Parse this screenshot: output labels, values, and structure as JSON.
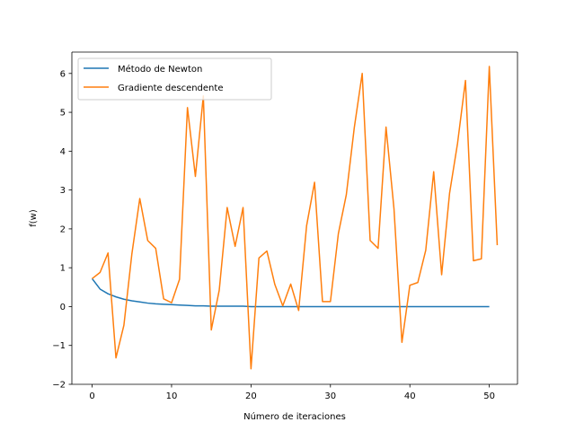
{
  "chart_data": {
    "type": "line",
    "xlabel": "Número de iteraciones",
    "ylabel": "f(w)",
    "xlim": [
      -2.55,
      53.55
    ],
    "ylim": [
      -2.0,
      6.55
    ],
    "xticks": [
      0,
      10,
      20,
      30,
      40,
      50
    ],
    "yticks": [
      -2,
      -1,
      0,
      1,
      2,
      3,
      4,
      5,
      6
    ],
    "xtick_labels": [
      "0",
      "10",
      "20",
      "30",
      "40",
      "50"
    ],
    "ytick_labels": [
      "−2",
      "−1",
      "0",
      "1",
      "2",
      "3",
      "4",
      "5",
      "6"
    ],
    "grid": false,
    "legend_position": "upper-left",
    "series": [
      {
        "name": "Método de Newton",
        "color": "#1f77b4",
        "x": [
          0,
          1,
          2,
          3,
          4,
          5,
          6,
          7,
          8,
          9,
          10,
          11,
          12,
          13,
          14,
          15,
          16,
          17,
          18,
          19,
          20,
          21,
          22,
          23,
          24,
          25,
          26,
          27,
          28,
          29,
          30,
          31,
          32,
          33,
          34,
          35,
          36,
          37,
          38,
          39,
          40,
          41,
          42,
          43,
          44,
          45,
          46,
          47,
          48,
          49,
          50
        ],
        "y": [
          0.72,
          0.45,
          0.33,
          0.25,
          0.19,
          0.15,
          0.12,
          0.09,
          0.07,
          0.06,
          0.05,
          0.04,
          0.03,
          0.02,
          0.02,
          0.01,
          0.01,
          0.01,
          0.01,
          0.01,
          0.0,
          0.0,
          0.0,
          0.0,
          0.0,
          0.0,
          0.0,
          0.0,
          0.0,
          0.0,
          0.0,
          0.0,
          0.0,
          0.0,
          0.0,
          0.0,
          0.0,
          0.0,
          0.0,
          0.0,
          0.0,
          0.0,
          0.0,
          0.0,
          0.0,
          0.0,
          0.0,
          0.0,
          0.0,
          0.0,
          0.0
        ]
      },
      {
        "name": "Gradiente descendente",
        "color": "#ff7f0e",
        "x": [
          0,
          1,
          2,
          3,
          4,
          5,
          6,
          7,
          8,
          9,
          10,
          11,
          12,
          13,
          14,
          15,
          16,
          17,
          18,
          19,
          20,
          21,
          22,
          23,
          24,
          25,
          26,
          27,
          28,
          29,
          30,
          31,
          32,
          33,
          34,
          35,
          36,
          37,
          38,
          39,
          40,
          41,
          42,
          43,
          44,
          45,
          46,
          47,
          48,
          49,
          50,
          51
        ],
        "y": [
          0.72,
          0.88,
          1.38,
          -1.32,
          -0.48,
          1.35,
          2.78,
          1.7,
          1.5,
          0.2,
          0.1,
          0.7,
          5.12,
          3.35,
          5.42,
          -0.6,
          0.42,
          2.55,
          1.55,
          2.55,
          -1.6,
          1.25,
          1.43,
          0.57,
          0.02,
          0.58,
          -0.1,
          2.08,
          3.2,
          0.13,
          0.13,
          1.88,
          2.88,
          4.6,
          6.0,
          1.7,
          1.5,
          4.62,
          2.52,
          -0.92,
          0.55,
          0.62,
          1.45,
          3.47,
          0.82,
          2.92,
          4.2,
          5.82,
          1.18,
          1.23,
          6.18,
          1.58
        ]
      }
    ]
  }
}
